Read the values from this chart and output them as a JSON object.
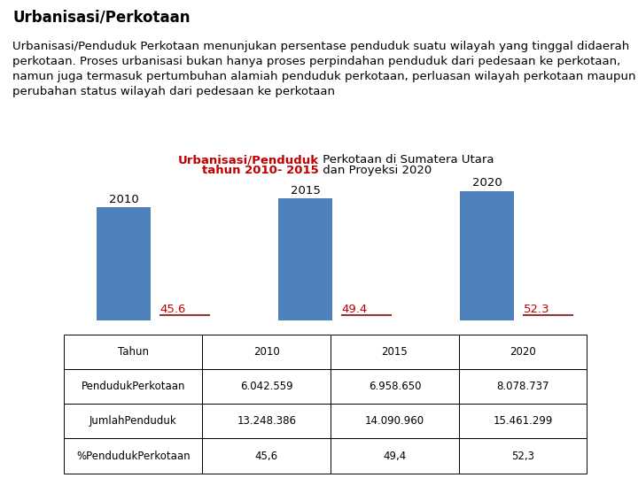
{
  "title_bold": "Urbanisasi/Perkotaan",
  "description": "Urbanisasi/Penduduk Perkotaan menunjukan persentase penduduk suatu wilayah yang tinggal didaerah perkotaan. Proses urbanisasi bukan hanya proses perpindahan penduduk dari pedesaan ke perkotaan, namun juga termasuk pertumbuhan alamiah penduduk perkotaan, perluasan wilayah perkotaan maupun perubahan status wilayah dari pedesaan ke perkotaan",
  "chart_title_line1_red": "Urbanisasi/Penduduk",
  "chart_title_line1_black": " Perkotaan di Sumatera Utara",
  "chart_title_line2_red": "tahun 2010- 2015",
  "chart_title_line2_black": " dan Proyeksi 2020",
  "years": [
    "2010",
    "2015",
    "2020"
  ],
  "values": [
    45.6,
    49.4,
    52.3
  ],
  "bar_color": "#4F81BD",
  "value_color": "#C00000",
  "line_color": "#943634",
  "bg_color": "#FFFFFF",
  "table_headers": [
    "Tahun",
    "2010",
    "2015",
    "2020"
  ],
  "table_rows": [
    [
      "PendudukPerkotaan",
      "6.042.559",
      "6.958.650",
      "8.078.737"
    ],
    [
      "JumlahPenduduk",
      "13.248.386",
      "14.090.960",
      "15.461.299"
    ],
    [
      "%PendudukPerkotaan",
      "45,6",
      "49,4",
      "52,3"
    ]
  ],
  "ylim_max": 58,
  "title_fontsize": 12,
  "desc_fontsize": 9.5,
  "chart_title_fontsize": 9.5,
  "bar_label_fontsize": 9.5,
  "year_label_fontsize": 9.5,
  "table_fontsize": 8.5
}
